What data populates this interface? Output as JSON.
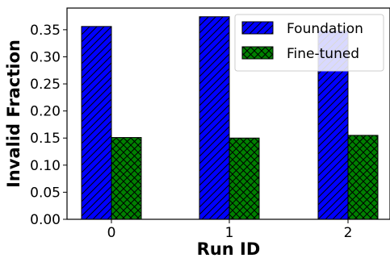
{
  "chart_data": {
    "type": "bar",
    "categories": [
      "0",
      "1",
      "2"
    ],
    "series": [
      {
        "name": "Foundation",
        "values": [
          0.356,
          0.374,
          0.348
        ],
        "color": "#0000ff",
        "hatch": "diagonal"
      },
      {
        "name": "Fine-tuned",
        "values": [
          0.151,
          0.15,
          0.155
        ],
        "color": "#008000",
        "hatch": "crosshatch"
      }
    ],
    "xlabel": "Run ID",
    "ylabel": "Invalid Fraction",
    "ylim": [
      0,
      0.39
    ],
    "yticks": [
      "0.00",
      "0.05",
      "0.10",
      "0.15",
      "0.20",
      "0.25",
      "0.30",
      "0.35"
    ],
    "legend_position": "top-right",
    "grid": false
  }
}
